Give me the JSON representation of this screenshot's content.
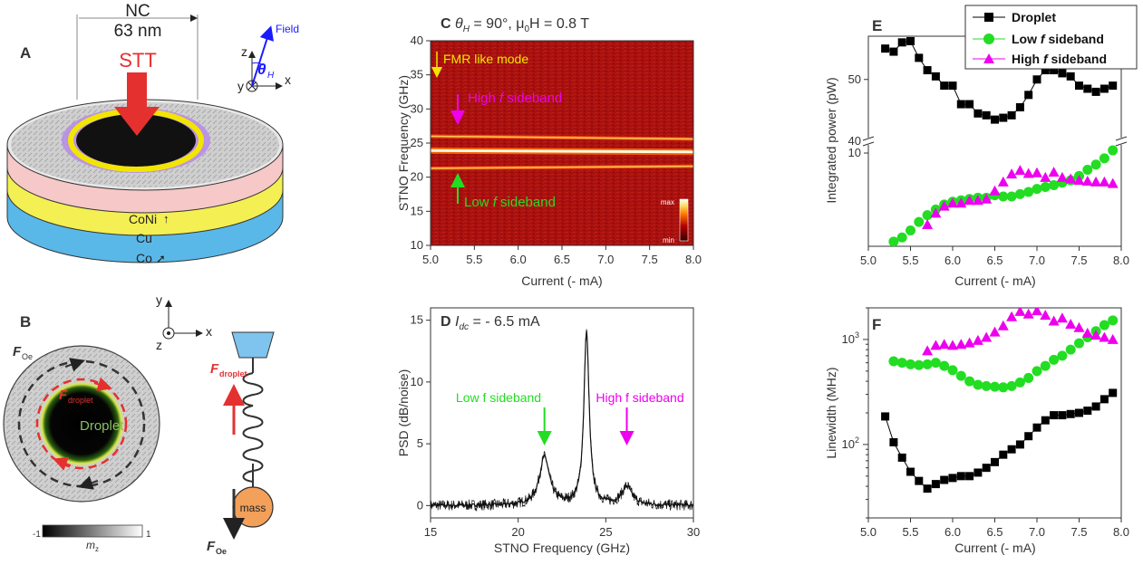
{
  "figure": {
    "panels": {
      "A": {
        "label": "A",
        "nc_label": "NC",
        "nc_size": "63 nm",
        "stt": "STT",
        "axis_z": "z",
        "axis_x": "x",
        "axis_y": "y",
        "field": "Field",
        "theta": "θ",
        "theta_sub": "H",
        "layers": [
          "CoNi",
          "Cu",
          "Co"
        ]
      },
      "B": {
        "label": "B",
        "axis_y": "y",
        "axis_x": "x",
        "axis_z": "z",
        "f_oe": "F",
        "f_oe_sub": "Oe",
        "f_droplet": "F",
        "f_droplet_sub": "droplet",
        "droplet": "Droplet",
        "mass": "mass",
        "colorbar_min": "-1",
        "colorbar_max": "1",
        "colorbar_label": "m",
        "colorbar_label_sub": "z"
      },
      "C": {
        "label": "C",
        "title_theta": "θ",
        "title_theta_sub": "H",
        "title_theta_val": " = 90°, μ",
        "title_mu_sub": "0",
        "title_field": "H = 0.8 T",
        "ylabel": "STNO Frequency (GHz)",
        "xlabel": "Current (- mA)",
        "fmr": "FMR like mode",
        "high_pre": "High ",
        "high_f": "f",
        "high_post": " sideband",
        "low_pre": "Low ",
        "low_f": "f",
        "low_post": " sideband",
        "cb_max": "max",
        "cb_min": "min",
        "xticks": [
          "5.0",
          "5.5",
          "6.0",
          "6.5",
          "7.0",
          "7.5",
          "8.0"
        ],
        "yticks": [
          "10",
          "15",
          "20",
          "25",
          "30",
          "35",
          "40"
        ]
      },
      "D": {
        "label": "D",
        "title_i": "I",
        "title_i_sub": "dc",
        "title_val": " = - 6.5 mA",
        "ylabel": "PSD (dB/noise)",
        "xlabel": "STNO Frequency (GHz)",
        "low_ann": "Low f sideband",
        "high_ann": "High f sideband",
        "xticks": [
          "15",
          "20",
          "25",
          "30"
        ],
        "yticks": [
          "0",
          "5",
          "10",
          "15"
        ]
      },
      "E": {
        "label": "E",
        "ylabel": "Integrated power (pW)",
        "xlabel": "Current (- mA)",
        "xticks": [
          "5.0",
          "5.5",
          "6.0",
          "6.5",
          "7.0",
          "7.5",
          "8.0"
        ],
        "yticks_top": [
          "40",
          "50"
        ],
        "yticks_bottom": [
          "10"
        ]
      },
      "F": {
        "label": "F",
        "ylabel": "Linewidth (MHz)",
        "xlabel": "Current (- mA)",
        "xticks": [
          "5.0",
          "5.5",
          "6.0",
          "6.5",
          "7.0",
          "7.5",
          "8.0"
        ]
      },
      "legend": {
        "droplet": "Droplet",
        "low_pre": "Low ",
        "low_f": "f",
        "low_post": " sideband",
        "high_pre": "High ",
        "high_f": "f",
        "high_post": " sideband"
      }
    },
    "colors": {
      "droplet": "#000000",
      "low": "#22dd22",
      "high": "#ee00ee",
      "stt_red": "#e53030",
      "yellow": "#f2e600",
      "field_blue": "#1a1aff"
    }
  },
  "chart_data": [
    {
      "panel": "C",
      "type": "heatmap",
      "xlabel": "Current (- mA)",
      "ylabel": "STNO Frequency (GHz)",
      "xlim": [
        5.0,
        8.0
      ],
      "ylim": [
        10,
        40
      ],
      "bands": [
        {
          "name": "FMR like mode",
          "x": [
            5.0,
            8.0
          ],
          "y": [
            23.9,
            23.7
          ],
          "intensity": "max"
        },
        {
          "name": "High f sideband",
          "x": [
            5.0,
            8.0
          ],
          "y": [
            26.0,
            25.6
          ],
          "intensity": "medium"
        },
        {
          "name": "Low f sideband",
          "x": [
            5.0,
            8.0
          ],
          "y": [
            21.3,
            21.6
          ],
          "intensity": "medium"
        }
      ]
    },
    {
      "panel": "D",
      "type": "line",
      "xlabel": "STNO Frequency (GHz)",
      "ylabel": "PSD (dB/noise)",
      "xlim": [
        15,
        30
      ],
      "ylim": [
        -1,
        16
      ],
      "peaks": [
        {
          "x": 21.5,
          "y": 3.9,
          "label": "Low f sideband"
        },
        {
          "x": 23.9,
          "y": 14.0
        },
        {
          "x": 26.2,
          "y": 1.5,
          "label": "High f sideband"
        }
      ]
    },
    {
      "panel": "E",
      "type": "scatter",
      "xlabel": "Current (- mA)",
      "ylabel": "Integrated power (pW)",
      "xlim": [
        5.0,
        8.0
      ],
      "broken_y": true,
      "series": [
        {
          "name": "Droplet",
          "marker": "square",
          "x": [
            5.2,
            5.3,
            5.4,
            5.5,
            5.6,
            5.7,
            5.8,
            5.9,
            6.0,
            6.1,
            6.2,
            6.3,
            6.4,
            6.5,
            6.6,
            6.7,
            6.8,
            6.9,
            7.0,
            7.1,
            7.2,
            7.3,
            7.4,
            7.5,
            7.6,
            7.7,
            7.8,
            7.9
          ],
          "y": [
            55,
            54.5,
            56,
            56.2,
            53.5,
            51.5,
            50.5,
            49,
            49,
            46,
            46,
            44.5,
            44.2,
            43.5,
            43.8,
            44.2,
            45.5,
            47.5,
            50,
            51.5,
            51.5,
            51,
            50.5,
            49,
            48.5,
            48,
            48.5,
            49
          ]
        },
        {
          "name": "Low f sideband",
          "marker": "circle",
          "x": [
            5.3,
            5.4,
            5.5,
            5.6,
            5.7,
            5.8,
            5.9,
            6.0,
            6.1,
            6.2,
            6.3,
            6.4,
            6.5,
            6.6,
            6.7,
            6.8,
            6.9,
            7.0,
            7.1,
            7.2,
            7.3,
            7.4,
            7.5,
            7.6,
            7.7,
            7.8,
            7.9
          ],
          "y": [
            0.8,
            0.9,
            1.1,
            1.4,
            1.7,
            2.0,
            2.3,
            2.5,
            2.6,
            2.7,
            2.8,
            2.8,
            3.0,
            2.9,
            2.9,
            3.1,
            3.3,
            3.6,
            3.8,
            4.0,
            4.3,
            4.6,
            5.2,
            6.2,
            7.2,
            8.6,
            10.8
          ]
        },
        {
          "name": "High f sideband",
          "marker": "triangle",
          "x": [
            5.7,
            5.8,
            5.9,
            6.0,
            6.1,
            6.2,
            6.3,
            6.4,
            6.5,
            6.6,
            6.7,
            6.8,
            6.9,
            7.0,
            7.1,
            7.2,
            7.3,
            7.4,
            7.5,
            7.6,
            7.7,
            7.8,
            7.9
          ],
          "y": [
            1.3,
            1.8,
            2.2,
            2.4,
            2.4,
            2.6,
            2.6,
            2.7,
            3.4,
            4.4,
            5.5,
            6.1,
            5.6,
            5.7,
            5.0,
            5.8,
            5.0,
            4.8,
            4.6,
            4.5,
            4.4,
            4.4,
            4.2
          ]
        }
      ]
    },
    {
      "panel": "F",
      "type": "scatter",
      "xlabel": "Current (- mA)",
      "ylabel": "Linewidth (MHz)",
      "xlim": [
        5.0,
        8.0
      ],
      "ylim": [
        20,
        2000
      ],
      "yscale": "log",
      "series": [
        {
          "name": "Droplet",
          "marker": "square",
          "x": [
            5.2,
            5.3,
            5.4,
            5.5,
            5.6,
            5.7,
            5.8,
            5.9,
            6.0,
            6.1,
            6.2,
            6.3,
            6.4,
            6.5,
            6.6,
            6.7,
            6.8,
            6.9,
            7.0,
            7.1,
            7.2,
            7.3,
            7.4,
            7.5,
            7.6,
            7.7,
            7.8,
            7.9
          ],
          "y": [
            185,
            105,
            75,
            55,
            45,
            38,
            42,
            46,
            48,
            50,
            50,
            54,
            60,
            68,
            80,
            90,
            100,
            120,
            145,
            170,
            190,
            190,
            195,
            200,
            210,
            230,
            270,
            310
          ]
        },
        {
          "name": "Low f sideband",
          "marker": "circle",
          "x": [
            5.3,
            5.4,
            5.5,
            5.6,
            5.7,
            5.8,
            5.9,
            6.0,
            6.1,
            6.2,
            6.3,
            6.4,
            6.5,
            6.6,
            6.7,
            6.8,
            6.9,
            7.0,
            7.1,
            7.2,
            7.3,
            7.4,
            7.5,
            7.6,
            7.7,
            7.8,
            7.9
          ],
          "y": [
            620,
            600,
            580,
            570,
            580,
            600,
            560,
            510,
            450,
            400,
            370,
            360,
            355,
            350,
            360,
            390,
            430,
            500,
            560,
            640,
            700,
            800,
            920,
            1050,
            1200,
            1370,
            1520
          ]
        },
        {
          "name": "High f sideband",
          "marker": "triangle",
          "x": [
            5.7,
            5.8,
            5.9,
            6.0,
            6.1,
            6.2,
            6.3,
            6.4,
            6.5,
            6.6,
            6.7,
            6.8,
            6.9,
            7.0,
            7.1,
            7.2,
            7.3,
            7.4,
            7.5,
            7.6,
            7.7,
            7.8,
            7.9
          ],
          "y": [
            780,
            880,
            900,
            880,
            900,
            930,
            980,
            1050,
            1180,
            1350,
            1650,
            1850,
            1750,
            1880,
            1700,
            1500,
            1600,
            1400,
            1300,
            1150,
            1100,
            1050,
            1000
          ]
        }
      ]
    }
  ]
}
